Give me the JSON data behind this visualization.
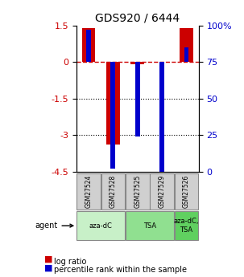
{
  "title": "GDS920 / 6444",
  "samples": [
    "GSM27524",
    "GSM27528",
    "GSM27525",
    "GSM27529",
    "GSM27526"
  ],
  "log_ratio": [
    1.4,
    -3.4,
    -0.1,
    0.0,
    1.4
  ],
  "percentile": [
    97,
    2,
    24,
    0,
    85
  ],
  "ylim_left": [
    -4.5,
    1.5
  ],
  "ylim_right": [
    0,
    100
  ],
  "yticks_left": [
    1.5,
    0,
    -1.5,
    -3,
    -4.5
  ],
  "yticks_right": [
    100,
    75,
    50,
    25,
    0
  ],
  "ytick_labels_right": [
    "100%",
    "75",
    "50",
    "25",
    "0"
  ],
  "hlines_dotted": [
    -1.5,
    -3
  ],
  "hline_dash": 0,
  "bar_width": 0.55,
  "red_color": "#cc0000",
  "blue_color": "#0000cc",
  "agent_groups": [
    {
      "label": "aza-dC",
      "samples": [
        0,
        1
      ],
      "color": "#c8f0c8"
    },
    {
      "label": "TSA",
      "samples": [
        2,
        3
      ],
      "color": "#90e090"
    },
    {
      "label": "aza-dC,\nTSA",
      "samples": [
        4,
        4
      ],
      "color": "#60d060"
    }
  ],
  "agent_label": "agent",
  "legend_red": "log ratio",
  "legend_blue": "percentile rank within the sample",
  "bg_color": "#ffffff",
  "plot_bg": "#ffffff",
  "grid_color": "#cccccc",
  "sample_box_color": "#d0d0d0"
}
